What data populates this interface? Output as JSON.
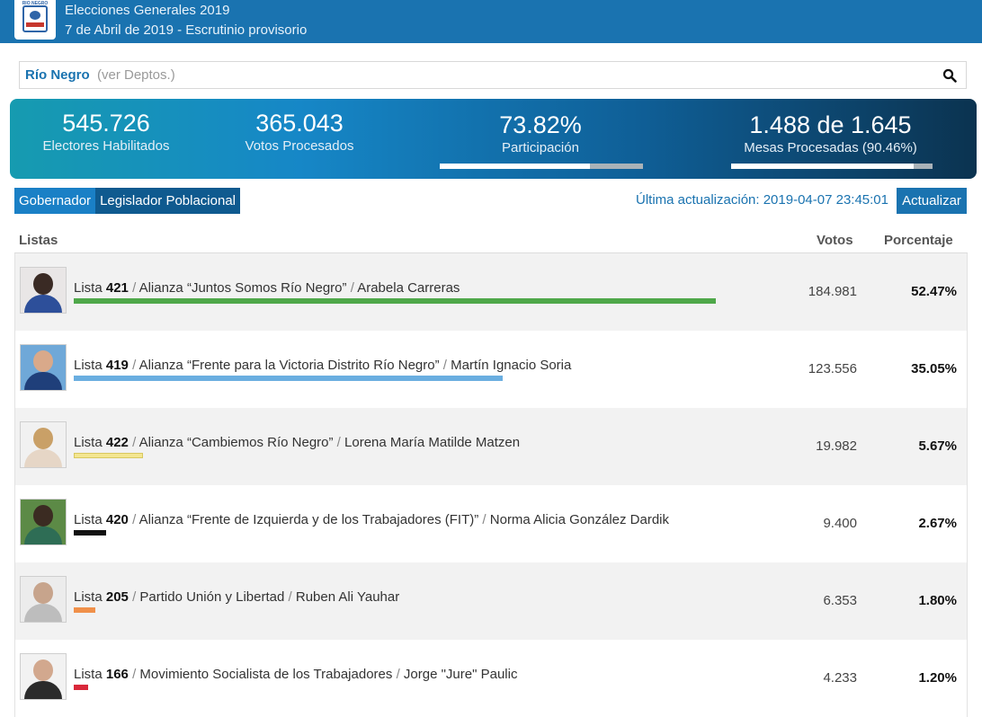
{
  "header": {
    "logo_text": "RIO NEGRO",
    "title": "Elecciones Generales 2019",
    "subtitle": "7 de Abril de 2019 - Escrutinio provisorio"
  },
  "search": {
    "district": "Río Negro",
    "link": "(ver Deptos.)",
    "icon": "search-icon"
  },
  "stats": {
    "electores_value": "545.726",
    "electores_label": "Electores Habilitados",
    "votos_value": "365.043",
    "votos_label": "Votos Procesados",
    "participacion_value": "73.82%",
    "participacion_label": "Participación",
    "participacion_fraction": 0.7382,
    "mesas_value": "1.488 de 1.645",
    "mesas_label": "Mesas Procesadas (90.46%)",
    "mesas_fraction": 0.9046
  },
  "tabs": [
    {
      "label": "Gobernador"
    },
    {
      "label": "Legislador Poblacional"
    }
  ],
  "update": {
    "text": "Última actualización: 2019-04-07 23:45:01",
    "button": "Actualizar"
  },
  "table": {
    "col_listas": "Listas",
    "col_votos": "Votos",
    "col_pct": "Porcentaje",
    "rows": [
      {
        "prefix": "Lista",
        "number": "421",
        "party": "Alianza “Juntos Somos Río Negro”",
        "candidate": "Arabela Carreras",
        "votes": "184.981",
        "pct": "52.47%",
        "pct_value": 52.47,
        "color": "#4fa84a"
      },
      {
        "prefix": "Lista",
        "number": "419",
        "party": "Alianza “Frente para la Victoria Distrito Río Negro”",
        "candidate": "Martín Ignacio Soria",
        "votes": "123.556",
        "pct": "35.05%",
        "pct_value": 35.05,
        "color": "#6aaee0"
      },
      {
        "prefix": "Lista",
        "number": "422",
        "party": "Alianza “Cambiemos Río Negro”",
        "candidate": "Lorena María Matilde Matzen",
        "votes": "19.982",
        "pct": "5.67%",
        "pct_value": 5.67,
        "color": "#f3e690"
      },
      {
        "prefix": "Lista",
        "number": "420",
        "party": "Alianza “Frente de Izquierda y de los Trabajadores (FIT)”",
        "candidate": "Norma Alicia González Dardik",
        "votes": "9.400",
        "pct": "2.67%",
        "pct_value": 2.67,
        "color": "#111111"
      },
      {
        "prefix": "Lista",
        "number": "205",
        "party": "Partido Unión y Libertad",
        "candidate": "Ruben Ali Yauhar",
        "votes": "6.353",
        "pct": "1.80%",
        "pct_value": 1.8,
        "color": "#f0904a"
      },
      {
        "prefix": "Lista",
        "number": "166",
        "party": "Movimiento Socialista de los Trabajadores",
        "candidate": "Jorge \"Jure\" Paulic",
        "votes": "4.233",
        "pct": "1.20%",
        "pct_value": 1.2,
        "color": "#d9283a"
      }
    ]
  }
}
